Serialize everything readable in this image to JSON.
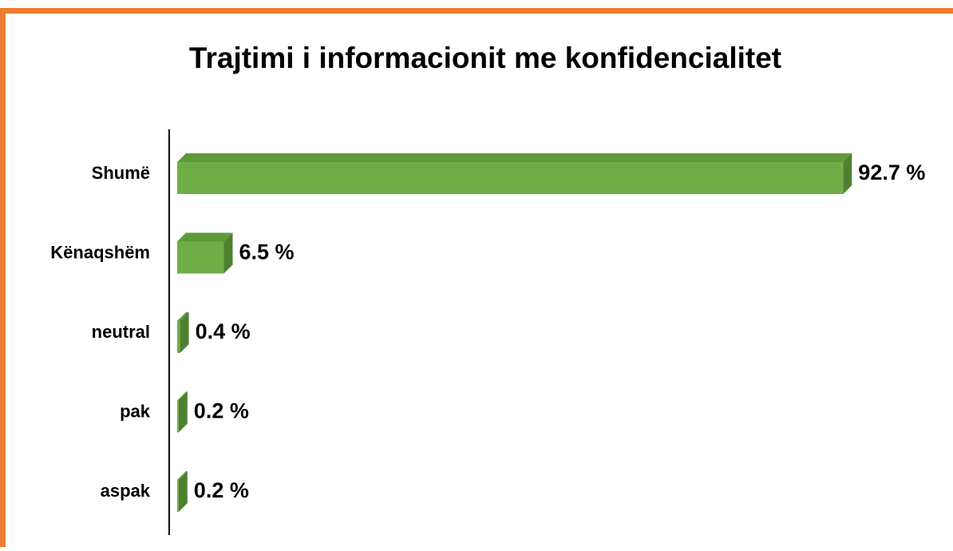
{
  "chart_data": {
    "type": "bar",
    "orientation": "horizontal",
    "title": "Trajtimi i informacionit me konfidencialitet",
    "categories": [
      "Shumë",
      "Kënaqshëm",
      "neutral",
      "pak",
      "aspak"
    ],
    "values": [
      92.7,
      6.5,
      0.4,
      0.2,
      0.2
    ],
    "value_labels": [
      "92.7 %",
      "6.5 %",
      "0.4 %",
      "0.2 %",
      "0.2 %"
    ],
    "color": "#70ad47"
  }
}
